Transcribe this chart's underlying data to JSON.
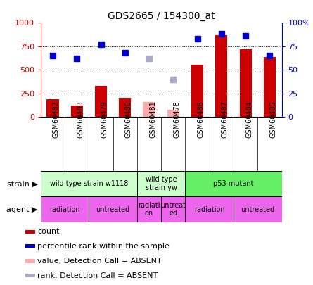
{
  "title": "GDS2665 / 154300_at",
  "samples": [
    "GSM60482",
    "GSM60483",
    "GSM60479",
    "GSM60480",
    "GSM60481",
    "GSM60478",
    "GSM60486",
    "GSM60487",
    "GSM60484",
    "GSM60485"
  ],
  "count_values": [
    190,
    120,
    330,
    205,
    null,
    null,
    555,
    870,
    715,
    635
  ],
  "count_absent": [
    null,
    null,
    null,
    null,
    155,
    75,
    null,
    null,
    null,
    null
  ],
  "rank_values": [
    65,
    62,
    77,
    68,
    null,
    null,
    83,
    88,
    86,
    65
  ],
  "rank_absent": [
    null,
    null,
    null,
    null,
    62,
    40,
    null,
    null,
    null,
    null
  ],
  "bar_color": "#cc0000",
  "bar_absent_color": "#ffaaaa",
  "dot_color": "#0000cc",
  "dot_absent_color": "#aaaacc",
  "ylim_left": [
    0,
    1000
  ],
  "ylim_right": [
    0,
    100
  ],
  "yticks_left": [
    0,
    250,
    500,
    750,
    1000
  ],
  "yticks_right": [
    0,
    25,
    50,
    75,
    100
  ],
  "yticklabels_left": [
    "0",
    "250",
    "500",
    "750",
    "1000"
  ],
  "yticklabels_right": [
    "0",
    "25",
    "50",
    "75",
    "100%"
  ],
  "strain_groups": [
    {
      "label": "wild type strain w1118",
      "start": 0,
      "end": 4,
      "color": "#ccffcc"
    },
    {
      "label": "wild type\nstrain yw",
      "start": 4,
      "end": 6,
      "color": "#ccffcc"
    },
    {
      "label": "p53 mutant",
      "start": 6,
      "end": 10,
      "color": "#66ee66"
    }
  ],
  "agent_groups": [
    {
      "label": "radiation",
      "start": 0,
      "end": 2,
      "color": "#ee66ee"
    },
    {
      "label": "untreated",
      "start": 2,
      "end": 4,
      "color": "#ee66ee"
    },
    {
      "label": "radiati\non",
      "start": 4,
      "end": 5,
      "color": "#ee66ee"
    },
    {
      "label": "untreat\ned",
      "start": 5,
      "end": 6,
      "color": "#ee66ee"
    },
    {
      "label": "radiation",
      "start": 6,
      "end": 8,
      "color": "#ee66ee"
    },
    {
      "label": "untreated",
      "start": 8,
      "end": 10,
      "color": "#ee66ee"
    }
  ],
  "legend_items": [
    {
      "label": "count",
      "color": "#cc0000"
    },
    {
      "label": "percentile rank within the sample",
      "color": "#0000cc"
    },
    {
      "label": "value, Detection Call = ABSENT",
      "color": "#ffaaaa"
    },
    {
      "label": "rank, Detection Call = ABSENT",
      "color": "#aaaacc"
    }
  ],
  "plot_bg": "#ffffff",
  "outer_bg": "#ffffff",
  "xtick_bg": "#d8d8d8",
  "grid_color": "#000000",
  "grid_lw": 0.7,
  "grid_style": "dotted",
  "bar_width": 0.5,
  "dot_size": 6,
  "left_axis_color": "#cc0000",
  "right_axis_color": "#0000cc",
  "tick_fontsize": 8,
  "sample_fontsize": 7,
  "label_fontsize": 8,
  "legend_fontsize": 8
}
